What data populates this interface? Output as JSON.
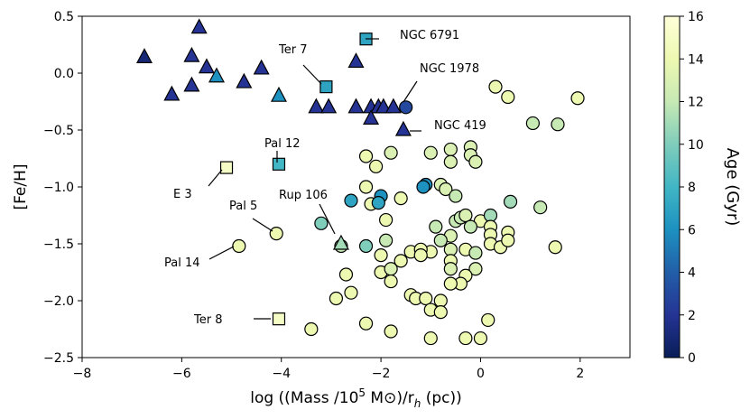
{
  "chart_data": {
    "type": "scatter",
    "title": "",
    "xlabel": "log ((Mass /10⁵ M⊙)/r_h (pc))",
    "xlabel_parts": {
      "main": "log ((Mass /10",
      "sup": "5",
      "mid": " M⊙)/r",
      "sub": "h",
      "end": " (pc))"
    },
    "ylabel": "[Fe/H]",
    "xlim": [
      -8,
      3
    ],
    "ylim": [
      -2.5,
      0.5
    ],
    "xticks": [
      -8,
      -6,
      -4,
      -2,
      0,
      2
    ],
    "xtick_labels": [
      "−8",
      "−6",
      "−4",
      "−2",
      "0",
      "2"
    ],
    "yticks": [
      0.5,
      0.0,
      -0.5,
      -1.0,
      -1.5,
      -2.0,
      -2.5
    ],
    "ytick_labels": [
      "0.5",
      "0.0",
      "−0.5",
      "−1.0",
      "−1.5",
      "−2.0",
      "−2.5"
    ],
    "colorbar": {
      "label": "Age (Gyr)",
      "range": [
        0,
        16
      ],
      "ticks": [
        0,
        2,
        4,
        6,
        8,
        10,
        12,
        14,
        16
      ],
      "tick_labels": [
        "0",
        "2",
        "4",
        "6",
        "8",
        "10",
        "12",
        "14",
        "16"
      ],
      "colormap": "YlGnBu_r",
      "stops": [
        "#081d58",
        "#253494",
        "#225ea8",
        "#1d91c0",
        "#41b6c4",
        "#7fcdbb",
        "#c7e9b4",
        "#edf8b1",
        "#ffffd9"
      ]
    },
    "series": [
      {
        "marker": "circle",
        "points": [
          [
            -1.5,
            -0.3,
            3
          ],
          [
            -3.2,
            -1.32,
            10
          ],
          [
            -2.8,
            -1.52,
            12
          ],
          [
            -2.7,
            -1.77,
            14
          ],
          [
            -2.9,
            -1.98,
            14
          ],
          [
            -2.6,
            -1.93,
            14
          ],
          [
            -2.3,
            -1.52,
            10
          ],
          [
            -3.4,
            -2.25,
            14
          ],
          [
            -2.3,
            -2.2,
            14
          ],
          [
            -2.3,
            -1.0,
            14
          ],
          [
            -2.2,
            -1.15,
            14
          ],
          [
            -2.3,
            -0.73,
            14
          ],
          [
            -2.1,
            -0.82,
            14
          ],
          [
            -1.8,
            -0.7,
            13
          ],
          [
            -1.6,
            -1.1,
            14
          ],
          [
            -1.9,
            -1.29,
            14
          ],
          [
            -1.9,
            -1.47,
            12
          ],
          [
            -2.0,
            -1.6,
            14
          ],
          [
            -2.0,
            -1.75,
            14
          ],
          [
            -1.8,
            -1.72,
            13
          ],
          [
            -1.8,
            -1.83,
            14
          ],
          [
            -1.6,
            -1.65,
            14
          ],
          [
            -1.4,
            -1.57,
            14
          ],
          [
            -1.4,
            -1.95,
            14
          ],
          [
            -1.3,
            -1.98,
            14
          ],
          [
            -1.1,
            -1.98,
            14
          ],
          [
            -1.0,
            -2.08,
            14
          ],
          [
            -0.8,
            -2.0,
            14
          ],
          [
            -0.8,
            -2.1,
            14
          ],
          [
            -1.0,
            -2.33,
            14
          ],
          [
            -0.3,
            -2.33,
            14
          ],
          [
            0.0,
            -2.33,
            14
          ],
          [
            0.15,
            -2.17,
            14
          ],
          [
            -1.8,
            -2.27,
            14
          ],
          [
            -2.6,
            -1.12,
            7
          ],
          [
            -2.0,
            -1.08,
            6
          ],
          [
            -2.05,
            -1.14,
            7
          ],
          [
            -1.1,
            -0.98,
            6
          ],
          [
            -1.0,
            -0.7,
            13
          ],
          [
            -0.6,
            -0.67,
            13
          ],
          [
            -0.6,
            -0.78,
            13
          ],
          [
            -0.2,
            -0.65,
            13
          ],
          [
            -0.2,
            -0.72,
            13
          ],
          [
            -0.1,
            -0.78,
            13
          ],
          [
            -0.8,
            -0.98,
            13
          ],
          [
            -0.7,
            -1.02,
            13
          ],
          [
            -0.5,
            -1.08,
            12
          ],
          [
            -0.9,
            -1.35,
            12
          ],
          [
            -0.5,
            -1.3,
            12
          ],
          [
            -0.4,
            -1.27,
            12
          ],
          [
            -0.3,
            -1.25,
            13
          ],
          [
            -0.6,
            -1.43,
            13
          ],
          [
            -0.8,
            -1.47,
            12
          ],
          [
            -0.6,
            -1.55,
            13
          ],
          [
            -0.3,
            -1.55,
            14
          ],
          [
            -0.1,
            -1.58,
            12
          ],
          [
            -0.1,
            -1.72,
            13
          ],
          [
            -0.3,
            -1.78,
            14
          ],
          [
            -0.4,
            -1.85,
            14
          ],
          [
            -0.6,
            -1.65,
            14
          ],
          [
            -0.6,
            -1.72,
            13
          ],
          [
            -0.6,
            -1.85,
            14
          ],
          [
            -1.0,
            -1.57,
            14
          ],
          [
            -1.2,
            -1.55,
            14
          ],
          [
            -1.2,
            -1.6,
            14
          ],
          [
            0.0,
            -1.3,
            14
          ],
          [
            0.2,
            -1.25,
            11
          ],
          [
            0.2,
            -1.35,
            14
          ],
          [
            0.2,
            -1.42,
            14
          ],
          [
            0.2,
            -1.5,
            14
          ],
          [
            0.4,
            -1.53,
            14
          ],
          [
            0.55,
            -1.4,
            14
          ],
          [
            0.55,
            -1.47,
            14
          ],
          [
            0.6,
            -1.13,
            11
          ],
          [
            1.2,
            -1.18,
            12
          ],
          [
            1.5,
            -1.53,
            14
          ],
          [
            0.3,
            -0.12,
            14
          ],
          [
            0.55,
            -0.21,
            14
          ],
          [
            1.05,
            -0.44,
            12
          ],
          [
            1.55,
            -0.45,
            12
          ],
          [
            1.95,
            -0.22,
            14
          ],
          [
            -4.85,
            -1.52,
            14
          ],
          [
            -4.1,
            -1.41,
            14
          ],
          [
            -0.2,
            -1.35,
            12
          ],
          [
            -1.15,
            -1.0,
            6
          ]
        ]
      },
      {
        "marker": "triangle",
        "points": [
          [
            -5.65,
            0.4,
            2
          ],
          [
            -6.75,
            0.14,
            1
          ],
          [
            -5.8,
            0.15,
            2
          ],
          [
            -5.5,
            0.05,
            2
          ],
          [
            -5.3,
            -0.03,
            6
          ],
          [
            -4.4,
            0.04,
            2
          ],
          [
            -4.75,
            -0.08,
            2
          ],
          [
            -5.8,
            -0.11,
            2
          ],
          [
            -6.2,
            -0.19,
            2
          ],
          [
            -4.05,
            -0.2,
            6
          ],
          [
            -2.5,
            0.1,
            2
          ],
          [
            -3.3,
            -0.3,
            2
          ],
          [
            -3.05,
            -0.3,
            2
          ],
          [
            -2.5,
            -0.3,
            2
          ],
          [
            -2.2,
            -0.3,
            2
          ],
          [
            -2.05,
            -0.3,
            2
          ],
          [
            -1.95,
            -0.3,
            2
          ],
          [
            -1.75,
            -0.3,
            2
          ],
          [
            -2.2,
            -0.4,
            2
          ],
          [
            -1.55,
            -0.5,
            2
          ],
          [
            -2.8,
            -1.5,
            11
          ]
        ]
      },
      {
        "marker": "square",
        "points": [
          [
            -2.3,
            0.3,
            7
          ],
          [
            -3.1,
            -0.12,
            7
          ],
          [
            -4.05,
            -0.8,
            8
          ],
          [
            -5.1,
            -0.83,
            15
          ],
          [
            -4.05,
            -2.16,
            15
          ]
        ]
      }
    ],
    "annotations": [
      {
        "label": "NGC 6791"
      },
      {
        "label": "Ter 7"
      },
      {
        "label": "NGC 1978"
      },
      {
        "label": "NGC 419"
      },
      {
        "label": "Pal 12"
      },
      {
        "label": "E 3"
      },
      {
        "label": "Rup 106"
      },
      {
        "label": "Pal 5"
      },
      {
        "label": "Pal 14"
      },
      {
        "label": "Ter 8"
      }
    ]
  }
}
